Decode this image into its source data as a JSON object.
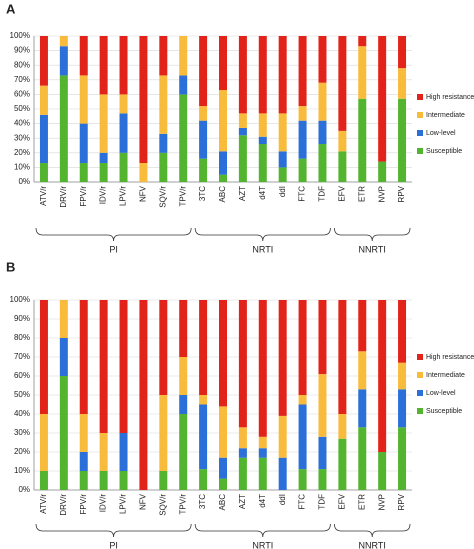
{
  "chart_data": [
    {
      "type": "stacked_bar",
      "panel": "A",
      "categories": [
        "ATV/r",
        "DRV/r",
        "FPV/r",
        "IDV/r",
        "LPV/r",
        "NFV",
        "SQV/r",
        "TPV/r",
        "3TC",
        "ABC",
        "AZT",
        "d4T",
        "ddI",
        "FTC",
        "TDF",
        "EFV",
        "ETR",
        "NVP",
        "RPV"
      ],
      "groups": [
        "PI",
        "NRTI",
        "NNRTI"
      ],
      "series": [
        {
          "name": "High resistance",
          "color": "#e2231a",
          "values": [
            34,
            0,
            27,
            40,
            40,
            87,
            27,
            0,
            48,
            37,
            53,
            53,
            53,
            48,
            32,
            65,
            7,
            86,
            22
          ]
        },
        {
          "name": "Intermediate",
          "color": "#f8bb3c",
          "values": [
            20,
            7,
            33,
            40,
            13,
            13,
            40,
            27,
            10,
            42,
            10,
            16,
            26,
            10,
            26,
            14,
            36,
            0,
            21
          ]
        },
        {
          "name": "Low-level",
          "color": "#2b6fd8",
          "values": [
            33,
            20,
            27,
            7,
            27,
            0,
            13,
            13,
            26,
            16,
            5,
            5,
            11,
            26,
            16,
            0,
            0,
            0,
            0
          ]
        },
        {
          "name": "Susceptible",
          "color": "#53b52f",
          "values": [
            13,
            73,
            13,
            13,
            20,
            0,
            20,
            60,
            16,
            5,
            32,
            26,
            10,
            16,
            26,
            21,
            57,
            14,
            57
          ]
        }
      ],
      "ylim": [
        0,
        100
      ],
      "yticks": [
        {
          "value": 0,
          "label": "0%"
        },
        {
          "value": 10,
          "label": "10%"
        },
        {
          "value": 20,
          "label": "20%"
        },
        {
          "value": 30,
          "label": "30%"
        },
        {
          "value": 40,
          "label": "40%"
        },
        {
          "value": 50,
          "label": "50%"
        },
        {
          "value": 60,
          "label": "60%"
        },
        {
          "value": 70,
          "label": "70%"
        },
        {
          "value": 80,
          "label": "80%"
        },
        {
          "value": 90,
          "label": "90%"
        },
        {
          "value": 100,
          "label": "100%"
        }
      ],
      "grid": true
    },
    {
      "type": "stacked_bar",
      "panel": "B",
      "categories": [
        "ATV/r",
        "DRV/r",
        "FPV/r",
        "IDV/r",
        "LPV/r",
        "NFV",
        "SQV/r",
        "TPV/r",
        "3TC",
        "ABC",
        "AZT",
        "d4T",
        "ddI",
        "FTC",
        "TDF",
        "EFV",
        "ETR",
        "NVP",
        "RPV"
      ],
      "groups": [
        "PI",
        "NRTI",
        "NNRTI"
      ],
      "series": [
        {
          "name": "High resistance",
          "color": "#e2231a",
          "values": [
            60,
            0,
            60,
            70,
            70,
            100,
            50,
            30,
            50,
            56,
            67,
            72,
            61,
            50,
            39,
            60,
            27,
            80,
            33
          ]
        },
        {
          "name": "Intermediate",
          "color": "#f8bb3c",
          "values": [
            30,
            20,
            20,
            20,
            0,
            0,
            40,
            20,
            5,
            27,
            11,
            6,
            22,
            5,
            33,
            13,
            20,
            0,
            14
          ]
        },
        {
          "name": "Low-level",
          "color": "#2b6fd8",
          "values": [
            0,
            20,
            10,
            0,
            20,
            0,
            0,
            10,
            34,
            11,
            5,
            5,
            17,
            34,
            17,
            0,
            20,
            0,
            20
          ]
        },
        {
          "name": "Susceptible",
          "color": "#53b52f",
          "values": [
            10,
            60,
            10,
            10,
            10,
            0,
            10,
            40,
            11,
            6,
            17,
            17,
            0,
            11,
            11,
            27,
            33,
            20,
            33
          ]
        }
      ],
      "ylim": [
        0,
        100
      ],
      "yticks": [
        {
          "value": 0,
          "label": "0%"
        },
        {
          "value": 10,
          "label": "10%"
        },
        {
          "value": 20,
          "label": "20%"
        },
        {
          "value": 30,
          "label": "30%"
        },
        {
          "value": 40,
          "label": "40%"
        },
        {
          "value": 50,
          "label": "50%"
        },
        {
          "value": 60,
          "label": "60%"
        },
        {
          "value": 70,
          "label": "70%"
        },
        {
          "value": 80,
          "label": "80%"
        },
        {
          "value": 90,
          "label": "90%"
        },
        {
          "value": 100,
          "label": "100%"
        }
      ],
      "grid": true
    }
  ]
}
